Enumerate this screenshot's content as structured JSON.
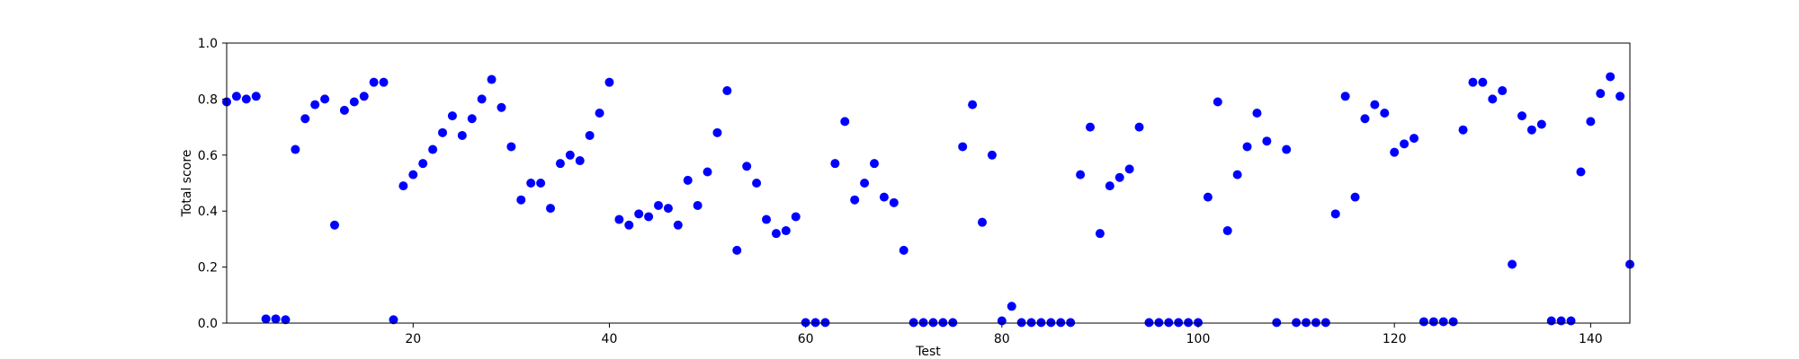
{
  "chart_data": {
    "type": "scatter",
    "title": "",
    "xlabel": "Test",
    "ylabel": "Total score",
    "xlim": [
      1,
      144
    ],
    "ylim": [
      0.0,
      1.0
    ],
    "xticks": [
      20,
      40,
      60,
      80,
      100,
      120,
      140
    ],
    "yticks": [
      0.0,
      0.2,
      0.4,
      0.6,
      0.8,
      1.0
    ],
    "xtick_labels": [
      "20",
      "40",
      "60",
      "80",
      "100",
      "120",
      "140"
    ],
    "ytick_labels": [
      "0.0",
      "0.2",
      "0.4",
      "0.6",
      "0.8",
      "1.0"
    ],
    "grid": false,
    "marker_color": "#0000ff",
    "series": [
      {
        "x": [
          1,
          2,
          3,
          4,
          5,
          6,
          7,
          8,
          9,
          10,
          11,
          12,
          13,
          14,
          15,
          16,
          17,
          18,
          19,
          20,
          21,
          22,
          23,
          24,
          25,
          26,
          27,
          28,
          29,
          30,
          31,
          32,
          33,
          34,
          35,
          36,
          37,
          38,
          39,
          40,
          41,
          42,
          43,
          44,
          45,
          46,
          47,
          48,
          49,
          50,
          51,
          52,
          53,
          54,
          55,
          56,
          57,
          58,
          59,
          60,
          61,
          62,
          63,
          64,
          65,
          66,
          67,
          68,
          69,
          70,
          71,
          72,
          73,
          74,
          75,
          76,
          77,
          78,
          79,
          80,
          81,
          82,
          83,
          84,
          85,
          86,
          87,
          88,
          89,
          90,
          91,
          92,
          93,
          94,
          95,
          96,
          97,
          98,
          99,
          100,
          101,
          102,
          103,
          104,
          105,
          106,
          107,
          108,
          109,
          110,
          111,
          112,
          113,
          114,
          115,
          116,
          117,
          118,
          119,
          120,
          121,
          122,
          123,
          124,
          125,
          126,
          127,
          128,
          129,
          130,
          131,
          132,
          133,
          134,
          135,
          136,
          137,
          138,
          139,
          140,
          141,
          142,
          143,
          144
        ],
        "y": [
          0.79,
          0.81,
          0.8,
          0.81,
          0.015,
          0.015,
          0.012,
          0.62,
          0.73,
          0.78,
          0.8,
          0.35,
          0.76,
          0.79,
          0.81,
          0.86,
          0.86,
          0.012,
          0.49,
          0.53,
          0.57,
          0.62,
          0.68,
          0.74,
          0.67,
          0.73,
          0.8,
          0.87,
          0.77,
          0.63,
          0.44,
          0.5,
          0.5,
          0.41,
          0.57,
          0.6,
          0.58,
          0.67,
          0.75,
          0.86,
          0.37,
          0.35,
          0.39,
          0.38,
          0.42,
          0.41,
          0.35,
          0.51,
          0.42,
          0.54,
          0.68,
          0.83,
          0.26,
          0.56,
          0.5,
          0.37,
          0.32,
          0.33,
          0.38,
          0.002,
          0.002,
          0.002,
          0.57,
          0.72,
          0.44,
          0.5,
          0.57,
          0.45,
          0.43,
          0.26,
          0.002,
          0.002,
          0.002,
          0.002,
          0.002,
          0.63,
          0.78,
          0.36,
          0.6,
          0.008,
          0.06,
          0.002,
          0.002,
          0.002,
          0.002,
          0.002,
          0.002,
          0.53,
          0.7,
          0.32,
          0.49,
          0.52,
          0.55,
          0.7,
          0.002,
          0.002,
          0.002,
          0.002,
          0.002,
          0.002,
          0.45,
          0.79,
          0.33,
          0.53,
          0.63,
          0.75,
          0.65,
          0.002,
          0.62,
          0.002,
          0.002,
          0.002,
          0.002,
          0.39,
          0.81,
          0.45,
          0.73,
          0.78,
          0.75,
          0.61,
          0.64,
          0.66,
          0.005,
          0.005,
          0.005,
          0.005,
          0.69,
          0.86,
          0.86,
          0.8,
          0.83,
          0.21,
          0.74,
          0.69,
          0.71,
          0.008,
          0.008,
          0.008,
          0.54,
          0.72,
          0.82,
          0.88,
          0.81,
          0.21
        ]
      }
    ]
  }
}
